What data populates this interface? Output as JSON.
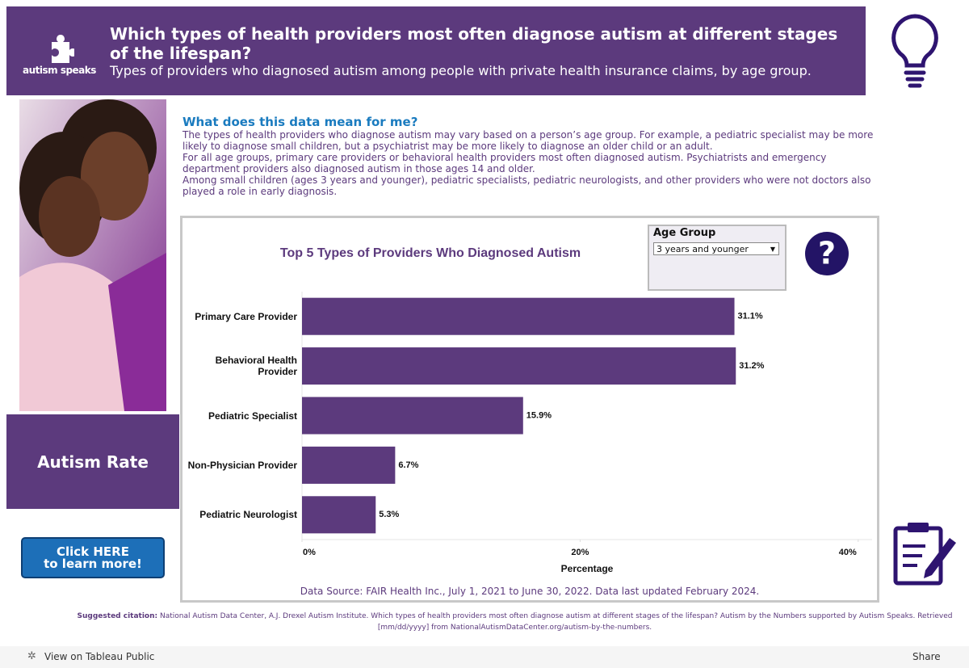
{
  "header": {
    "logo": "autism speaks",
    "title": "Which types of health providers most often diagnose autism at different stages of the lifespan?",
    "subtitle": "Types of providers who diagnosed autism among people with private health insurance claims, by age group."
  },
  "intro": {
    "heading": "What does this data mean for me?",
    "paragraphs": [
      "The types of health providers who diagnose autism may vary based on a person’s age group. For example, a pediatric specialist may be more likely to diagnose small children, but a psychiatrist may be more likely to diagnose an older child or an adult.",
      "For all age groups, primary care providers or behavioral health providers most often diagnosed autism. Psychiatrists and emergency department providers also diagnosed autism in those ages 14 and older.",
      "Among small children (ages 3 years and younger), pediatric specialists, pediatric neurologists, and other providers who were not doctors also played a role in early diagnosis."
    ]
  },
  "sidebar": {
    "autism_rate": "Autism Rate",
    "button": [
      "Click HERE",
      "to learn more!"
    ]
  },
  "filter": {
    "label": "Age Group",
    "value": "3 years and younger"
  },
  "chart_data": {
    "type": "bar",
    "orientation": "horizontal",
    "title": "Top 5 Types of Providers Who Diagnosed Autism",
    "categories": [
      "Primary Care Provider",
      "Behavioral Health Provider",
      "Pediatric Specialist",
      "Non-Physician Provider",
      "Pediatric Neurologist"
    ],
    "values": [
      31.1,
      31.2,
      15.9,
      6.7,
      5.3
    ],
    "value_labels": [
      "31.1%",
      "31.2%",
      "15.9%",
      "6.7%",
      "5.3%"
    ],
    "color": "#5c3a7d",
    "xlabel": "Percentage",
    "xlim": [
      0,
      41
    ],
    "xticks": [
      {
        "value": 0,
        "label": "0%"
      },
      {
        "value": 20,
        "label": "20%"
      },
      {
        "value": 40,
        "label": "40%"
      }
    ],
    "grid": false
  },
  "source": "Data Source: FAIR Health Inc., July 1, 2021 to June 30, 2022. Data last updated February 2024.",
  "citation": {
    "label": "Suggested citation:",
    "text": "National Autism Data Center, A.J. Drexel Autism Institute. Which types of health providers most often diagnose autism at different stages of the lifespan? Autism by the Numbers supported by Autism Speaks. Retrieved [mm/dd/yyyy] from NationalAutismDataCenter.org/autism-by-the-numbers."
  },
  "toolbar": {
    "view": "View on Tableau Public",
    "share": "Share"
  }
}
